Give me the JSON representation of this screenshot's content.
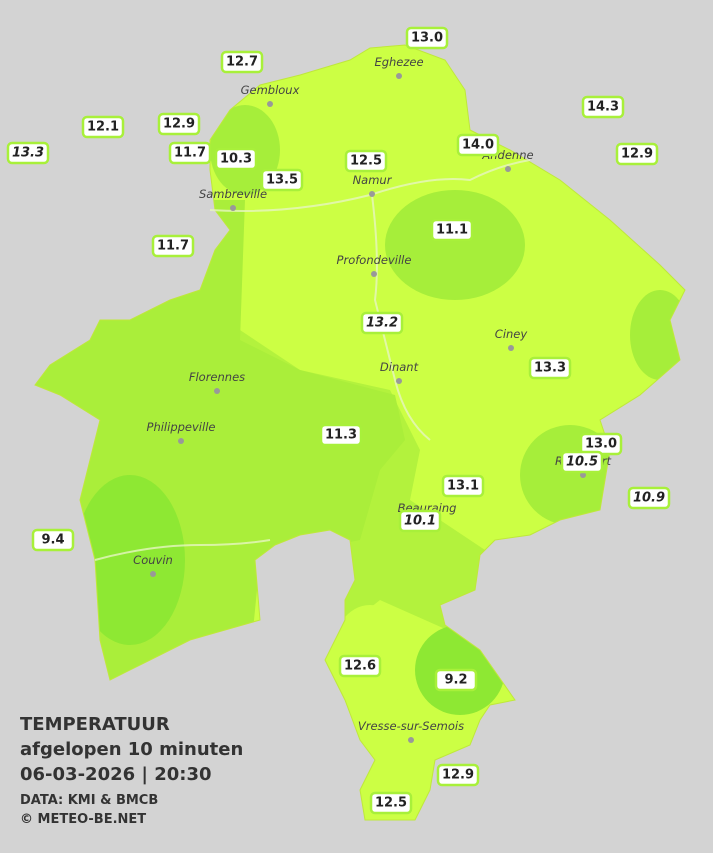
{
  "header": {
    "title": "TEMPERATUUR",
    "subtitle": "afgelopen 10 minuten",
    "timestamp": "06-03-2026  |  20:30",
    "source": "DATA: KMI & BMCB",
    "copyright": "© METEO-BE.NET"
  },
  "places": [
    {
      "label": "Eghezee"
    },
    {
      "label": "Gembloux"
    },
    {
      "label": "Andenne"
    },
    {
      "label": "Namur"
    },
    {
      "label": "Sambreville"
    },
    {
      "label": "Profondeville"
    },
    {
      "label": "Ciney"
    },
    {
      "label": "Dinant"
    },
    {
      "label": "Florennes"
    },
    {
      "label": "Philippeville"
    },
    {
      "label": "Rochefort"
    },
    {
      "label": "Beauraing"
    },
    {
      "label": "Couvin"
    },
    {
      "label": "Vresse-sur-Semois"
    }
  ],
  "stations": [
    {
      "label": "13.0"
    },
    {
      "label": "12.7"
    },
    {
      "label": "14.3"
    },
    {
      "label": "12.1"
    },
    {
      "label": "12.9"
    },
    {
      "label": "13.3"
    },
    {
      "label": "11.7"
    },
    {
      "label": "10.3"
    },
    {
      "label": "12.5"
    },
    {
      "label": "14.0"
    },
    {
      "label": "12.9"
    },
    {
      "label": "13.5"
    },
    {
      "label": "11.7"
    },
    {
      "label": "11.1"
    },
    {
      "label": "13.2"
    },
    {
      "label": "13.3"
    },
    {
      "label": "11.3"
    },
    {
      "label": "13.0"
    },
    {
      "label": "10.5"
    },
    {
      "label": "13.1"
    },
    {
      "label": "10.9"
    },
    {
      "label": "10.1"
    },
    {
      "label": "9.4"
    },
    {
      "label": "12.6"
    },
    {
      "label": "9.2"
    },
    {
      "label": "12.9"
    },
    {
      "label": "12.5"
    }
  ]
}
